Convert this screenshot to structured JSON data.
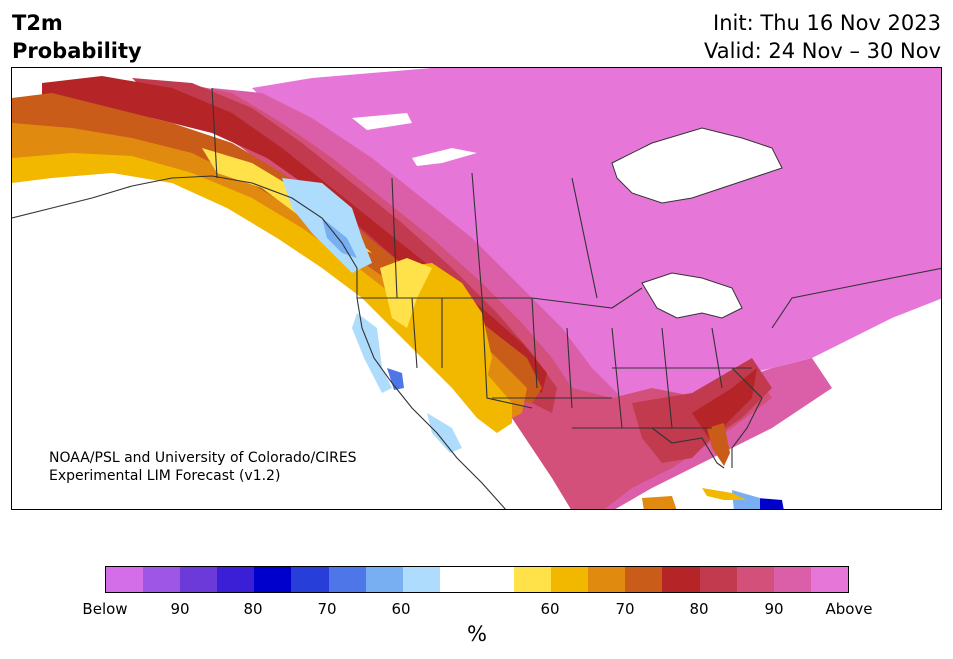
{
  "header": {
    "title_line1": "T2m",
    "title_line2": "Probability",
    "init_label": "Init: Thu 16 Nov 2023",
    "valid_label": "Valid: 24 Nov – 30 Nov"
  },
  "credit": {
    "line1": "NOAA/PSL and University of Colorado/CIRES",
    "line2": "Experimental LIM Forecast (v1.2)"
  },
  "colorbar": {
    "unit": "%",
    "swatches": [
      "#d36ee8",
      "#9d56e6",
      "#6c3ad9",
      "#3a1fd6",
      "#0000cc",
      "#283ed9",
      "#4f76e8",
      "#78aef2",
      "#aedcfc",
      "#ffffff",
      "#ffffff",
      "#ffe24a",
      "#f2b800",
      "#e08a10",
      "#c85c18",
      "#b52528",
      "#c23a4e",
      "#d3507a",
      "#db5ea8",
      "#e677d8"
    ],
    "tick_labels": [
      "Below",
      "90",
      "80",
      "70",
      "60",
      "60",
      "70",
      "80",
      "90",
      "Above"
    ]
  },
  "map": {
    "colors": {
      "above": "#e677d8",
      "p90": "#db5ea8",
      "p85": "#d3507a",
      "p80": "#c23a4e",
      "p75": "#b52528",
      "p70": "#c85c18",
      "p65": "#e08a10",
      "p60": "#f2b800",
      "p55": "#ffe24a",
      "blue55": "#aedcfc",
      "blue60": "#78aef2",
      "blue65": "#4f76e8",
      "blue75": "#0000cc",
      "border": "#333333"
    }
  }
}
